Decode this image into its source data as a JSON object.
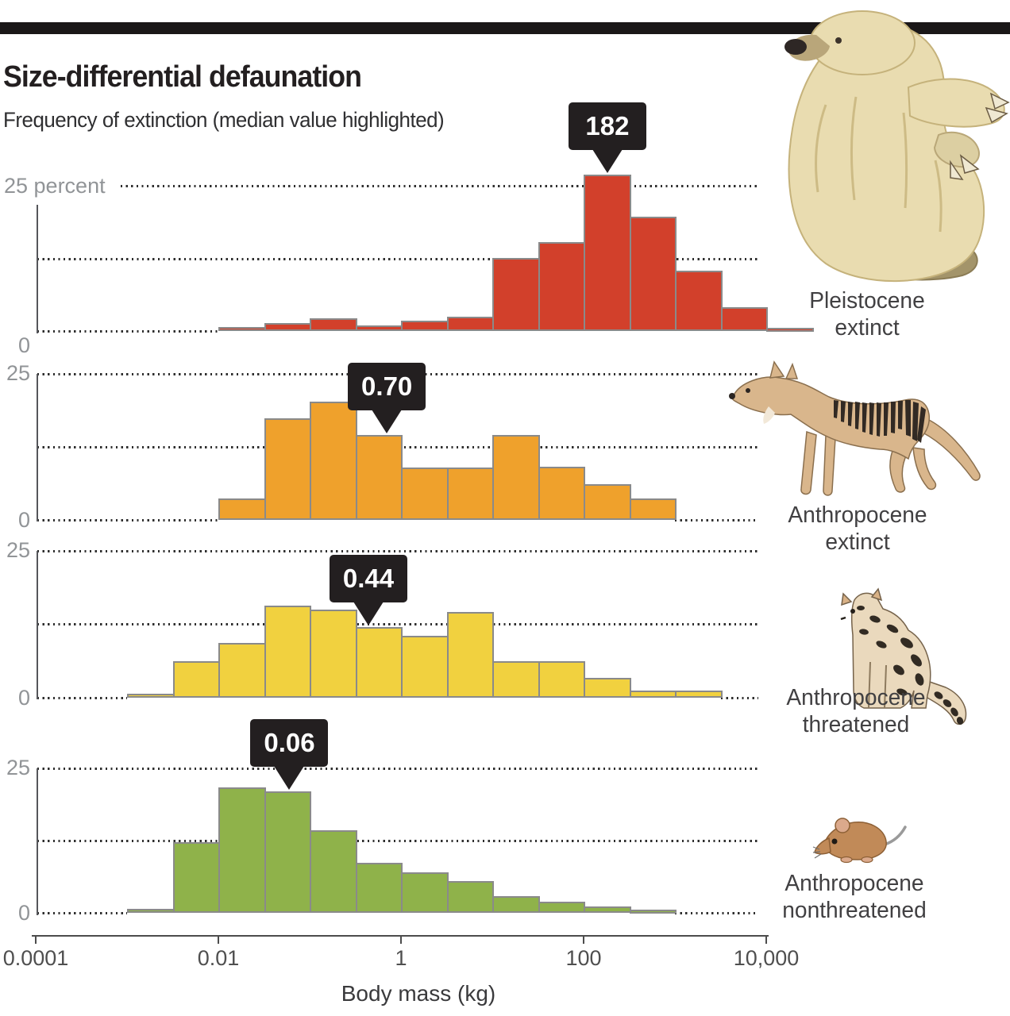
{
  "header": {
    "title": "Size-differential defaunation",
    "subtitle": "Frequency of extinction (median value highlighted)"
  },
  "y_axis": {
    "first_panel_top_label": "25 percent",
    "top_label": "25",
    "zero_label": "0",
    "unit": "percent"
  },
  "x_axis": {
    "label": "Body mass (kg)",
    "scale": "log10",
    "ticks": [
      {
        "label": "0.0001",
        "value": 0.0001
      },
      {
        "label": "0.01",
        "value": 0.01
      },
      {
        "label": "1",
        "value": 1
      },
      {
        "label": "100",
        "value": 100
      },
      {
        "label": "10,000",
        "value": 10000
      }
    ]
  },
  "chart_data": {
    "type": "bar",
    "subtype": "histogram-small-multiples",
    "x_unit": "kg body mass, log scale, half-decade bins",
    "y_unit": "percent of species",
    "y_gridlines": [
      0,
      12.5,
      25
    ],
    "ylim": [
      0,
      27
    ],
    "title": "Size-differential defaunation",
    "subtitle": "Frequency of extinction (median value highlighted)",
    "panels": [
      {
        "name": "Pleistocene extinct",
        "label_lines": [
          "Pleistocene",
          "extinct"
        ],
        "color": "#d2402b",
        "animal_icon": "giant-ground-sloth",
        "median_kg": 182,
        "median_label": "182",
        "bin_start_kg": 0.01,
        "bins_per_decade": 2,
        "values_percent": [
          0.7,
          1.4,
          2.2,
          1.0,
          1.8,
          2.5,
          12.7,
          15.4,
          27.0,
          19.7,
          10.5,
          4.2,
          0.5
        ]
      },
      {
        "name": "Anthropocene extinct",
        "label_lines": [
          "Anthropocene",
          "extinct"
        ],
        "color": "#efa12c",
        "animal_icon": "thylacine",
        "median_kg": 0.7,
        "median_label": "0.70",
        "bin_start_kg": 0.01,
        "bins_per_decade": 2,
        "values_percent": [
          3.7,
          17.4,
          20.2,
          14.5,
          9.0,
          9.0,
          14.5,
          9.1,
          6.1,
          3.7
        ]
      },
      {
        "name": "Anthropocene threatened",
        "label_lines": [
          "Anthropocene",
          "threatened"
        ],
        "color": "#f1d13f",
        "animal_icon": "clouded-leopard",
        "median_kg": 0.44,
        "median_label": "0.44",
        "bin_start_kg": 0.001,
        "bins_per_decade": 2,
        "values_percent": [
          0.5,
          6.2,
          9.3,
          15.7,
          15.0,
          12.0,
          10.5,
          14.6,
          6.2,
          6.2,
          3.4,
          1.2,
          1.2
        ]
      },
      {
        "name": "Anthropocene nonthreatened",
        "label_lines": [
          "Anthropocene",
          "nonthreatened"
        ],
        "color": "#8fb24a",
        "animal_icon": "mouse",
        "median_kg": 0.06,
        "median_label": "0.06",
        "bin_start_kg": 0.001,
        "bins_per_decade": 2,
        "values_percent": [
          0.8,
          12.3,
          21.7,
          21.0,
          14.3,
          8.7,
          7.0,
          5.5,
          3.0,
          2.0,
          1.2,
          0.6
        ]
      }
    ]
  },
  "style": {
    "bar_stroke": "#8a8a8a",
    "callout_bg": "#231f20",
    "callout_text": "#ffffff",
    "dotted_line": "#2e2e2e",
    "axis_line": "#4c4c4c",
    "y_label_color": "#919497",
    "top_bar": "#1a1718"
  }
}
